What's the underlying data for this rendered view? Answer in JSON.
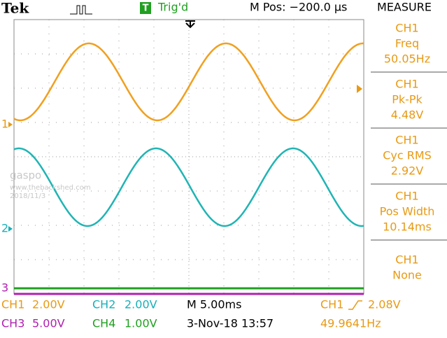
{
  "header": {
    "brand": "Tek",
    "trigger_box": "T",
    "trigger_status": "Trig'd",
    "position": "M Pos: −200.0 µs",
    "menu": "MEASURE"
  },
  "measurements": [
    {
      "channel": "CH1",
      "label": "Freq",
      "value": "50.05Hz"
    },
    {
      "channel": "CH1",
      "label": "Pk-Pk",
      "value": "4.48V"
    },
    {
      "channel": "CH1",
      "label": "Cyc RMS",
      "value": "2.92V"
    },
    {
      "channel": "CH1",
      "label": "Pos Width",
      "value": "10.14ms"
    },
    {
      "channel": "CH1",
      "label": "None"
    }
  ],
  "markers": {
    "ch1": "1",
    "ch2": "2",
    "ch3": "3"
  },
  "watermark": {
    "name": "gaspo",
    "site": "www.thebackshed.com",
    "date": "2018/11/3"
  },
  "footer": {
    "ch1": "CH1",
    "ch1_scale": "2.00V",
    "ch2": "CH2",
    "ch2_scale": "2.00V",
    "timebase": "M 5.00ms",
    "trigger_source": "CH1",
    "trigger_level": "2.08V",
    "ch3": "CH3",
    "ch3_scale": "5.00V",
    "ch4": "CH4",
    "ch4_scale": "1.00V",
    "datetime": "3-Nov-18 13:57",
    "frequency": "49.9641Hz"
  }
}
